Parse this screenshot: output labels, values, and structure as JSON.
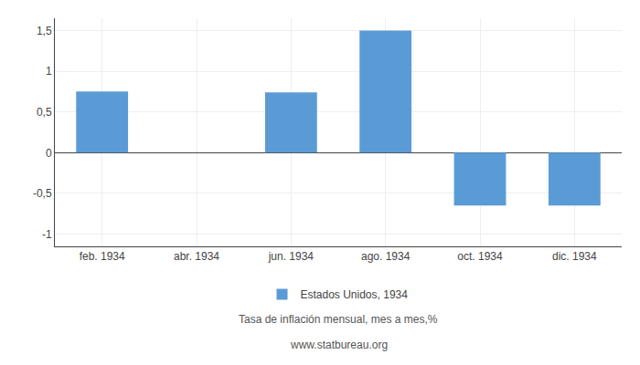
{
  "chart_data": {
    "type": "bar",
    "subtitle": "Tasa de inflación mensual, mes a mes,%",
    "annotations": [
      "www.statbureau.org"
    ],
    "categories": [
      "feb. 1934",
      "abr. 1934",
      "jun. 1934",
      "ago. 1934",
      "oct. 1934",
      "dic. 1934"
    ],
    "series": [
      {
        "name": "Estados Unidos, 1934",
        "color": "#5b9bd5",
        "values": [
          0.75,
          null,
          0.74,
          1.5,
          -0.65,
          -0.65
        ]
      }
    ],
    "ylim": [
      -1.15,
      1.65
    ],
    "yticks": [
      -1,
      {
        "value": -0.5,
        "label": "-0,5"
      },
      0,
      {
        "value": 0.5,
        "label": "0,5"
      },
      1,
      {
        "value": 1.5,
        "label": "1,5"
      }
    ],
    "grid": true,
    "legend": "bottom"
  }
}
